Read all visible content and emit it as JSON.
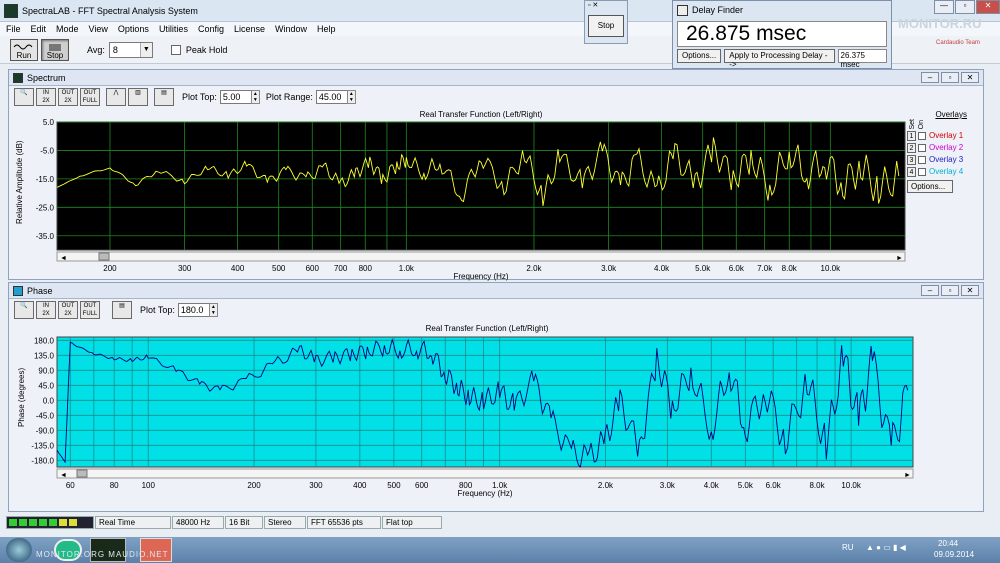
{
  "app": {
    "title": "SpectraLAB - FFT Spectral Analysis System"
  },
  "menu": [
    "File",
    "Edit",
    "Mode",
    "View",
    "Options",
    "Utilities",
    "Config",
    "License",
    "Window",
    "Help"
  ],
  "toolbar": {
    "run_label": "Run",
    "stop_label": "Stop",
    "avg_label": "Avg:",
    "avg_value": "8",
    "peak_hold_label": "Peak Hold"
  },
  "stop_dialog": {
    "button": "Stop"
  },
  "delay_finder": {
    "title": "Delay Finder",
    "value": "26.875 msec",
    "options_label": "Options...",
    "apply_label": "Apply to Processing Delay -->",
    "field_value": "26.375 msec"
  },
  "watermark": {
    "line1": "MONITOR.RU",
    "line2": "Cardaudio Team"
  },
  "spectrum": {
    "title": "Spectrum",
    "plot_top_label": "Plot Top:",
    "plot_top_value": "5.00",
    "plot_range_label": "Plot Range:",
    "plot_range_value": "45.00",
    "icons": [
      "zoom-icon",
      "in-2x-icon",
      "out-2x-icon",
      "out-full-icon",
      "line-plot-icon",
      "bar-plot-icon",
      "table-icon"
    ]
  },
  "overlays": {
    "header": "Overlays",
    "set_label": "Set",
    "on_label": "On",
    "items": [
      {
        "num": "1",
        "label": "Overlay 1",
        "color": "#d40000"
      },
      {
        "num": "2",
        "label": "Overlay 2",
        "color": "#cc00cc"
      },
      {
        "num": "3",
        "label": "Overlay 3",
        "color": "#2020c0"
      },
      {
        "num": "4",
        "label": "Overlay 4",
        "color": "#00b0d0"
      }
    ],
    "options_label": "Options..."
  },
  "phase": {
    "title": "Phase",
    "plot_top_label": "Plot Top:",
    "plot_top_value": "180.0"
  },
  "status": {
    "items": [
      "Real Time",
      "48000 Hz",
      "16 Bit",
      "Stereo",
      "FFT 65536 pts",
      "Flat top"
    ]
  },
  "taskbar": {
    "lang": "RU",
    "time": "20:44",
    "date": "09.09.2014",
    "tray_text": "MONITOR.ORG  MAUDIO.NET"
  },
  "chart_data": [
    {
      "type": "line",
      "title": "Real Transfer Function (Left/Right)",
      "xlabel": "Frequency (Hz)",
      "ylabel": "Relative Amplitude (dB)",
      "x_scale": "log",
      "xlim": [
        150,
        15000
      ],
      "ylim": [
        -40,
        5
      ],
      "y_ticks": [
        "5.0",
        "-5.0",
        "-15.0",
        "-25.0",
        "-35.0"
      ],
      "x_ticks": [
        "200",
        "300",
        "400",
        "500",
        "600",
        "700",
        "800",
        "1.0k",
        "2.0k",
        "3.0k",
        "4.0k",
        "5.0k",
        "6.0k",
        "7.0k",
        "8.0k",
        "10.0k"
      ],
      "series": [
        {
          "color": "#ffff33",
          "x": [
            150,
            170,
            200,
            230,
            260,
            300,
            340,
            380,
            420,
            470,
            520,
            580,
            640,
            700,
            760,
            820,
            880,
            950,
            1000,
            1100,
            1200,
            1350,
            1500,
            1700,
            1900,
            2100,
            2300,
            2600,
            2900,
            3200,
            3500,
            3900,
            4300,
            4800,
            5300,
            5900,
            6500,
            7200,
            8000,
            8800,
            9700,
            10700,
            11800,
            13000,
            14500
          ],
          "values": [
            -18,
            -14,
            -11,
            -17,
            -12,
            -16,
            -11,
            -14,
            -10,
            -16,
            -12,
            -15,
            -11,
            -17,
            -13,
            -9,
            -15,
            -10,
            -8,
            -13,
            -9,
            -21,
            -7,
            -18,
            -6,
            -22,
            -7,
            -17,
            -5,
            -18,
            -8,
            -20,
            -6,
            -17,
            -4,
            -15,
            -7,
            -18,
            -5,
            -13,
            -8,
            -17,
            -10,
            -19,
            -14
          ]
        }
      ]
    },
    {
      "type": "line",
      "title": "Real Transfer Function (Left/Right)",
      "xlabel": "Frequency (Hz)",
      "ylabel": "Phase (degrees)",
      "x_scale": "log",
      "xlim": [
        55,
        15000
      ],
      "ylim": [
        -200,
        190
      ],
      "y_ticks": [
        "180.0",
        "135.0",
        "90.0",
        "45.0",
        "0.0",
        "-45.0",
        "-90.0",
        "-135.0",
        "-180.0"
      ],
      "x_ticks": [
        "60",
        "80",
        "100",
        "200",
        "300",
        "400",
        "500",
        "600",
        "800",
        "1.0k",
        "2.0k",
        "3.0k",
        "4.0k",
        "5.0k",
        "6.0k",
        "8.0k",
        "10.0k"
      ],
      "series": [
        {
          "color": "#000080",
          "x": [
            55,
            58,
            60,
            62,
            70,
            80,
            90,
            100,
            120,
            140,
            160,
            190,
            230,
            270,
            300,
            340,
            380,
            420,
            470,
            520,
            580,
            640,
            700,
            760,
            820,
            900,
            1000,
            1100,
            1250,
            1400,
            1600,
            1800,
            2000,
            2200,
            2500,
            2800,
            3100,
            3500,
            4000,
            4500,
            5000,
            5700,
            6500,
            7500,
            8500,
            9500,
            10500,
            11500,
            13000,
            14500
          ],
          "values": [
            -150,
            -185,
            175,
            165,
            140,
            125,
            120,
            130,
            90,
            50,
            30,
            60,
            110,
            150,
            120,
            130,
            140,
            150,
            160,
            150,
            155,
            145,
            80,
            40,
            10,
            -5,
            25,
            -20,
            60,
            -60,
            -160,
            -175,
            -120,
            0,
            -150,
            130,
            -20,
            90,
            -90,
            100,
            -80,
            30,
            -120,
            60,
            -140,
            130,
            -60,
            120,
            -150,
            30
          ]
        }
      ]
    }
  ]
}
